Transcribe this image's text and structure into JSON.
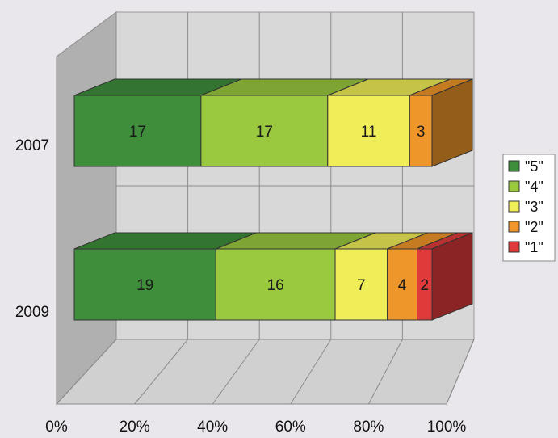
{
  "chart_data": {
    "type": "bar",
    "stacked": "percent",
    "orientation": "horizontal",
    "three_d": true,
    "categories": [
      "2007",
      "2009"
    ],
    "series": [
      {
        "name": "\"5\"",
        "values": [
          17,
          19
        ],
        "color": "#3e8e3b"
      },
      {
        "name": "\"4\"",
        "values": [
          17,
          16
        ],
        "color": "#9ac83e"
      },
      {
        "name": "\"3\"",
        "values": [
          11,
          7
        ],
        "color": "#f0ee58"
      },
      {
        "name": "\"2\"",
        "values": [
          3,
          4
        ],
        "color": "#ef962a"
      },
      {
        "name": "\"1\"",
        "values": [
          0,
          2
        ],
        "color": "#e03a3a"
      }
    ],
    "x_ticks": [
      "0%",
      "20%",
      "40%",
      "60%",
      "80%",
      "100%"
    ],
    "xlim": [
      0,
      100
    ],
    "grid": true,
    "legend": "right"
  }
}
